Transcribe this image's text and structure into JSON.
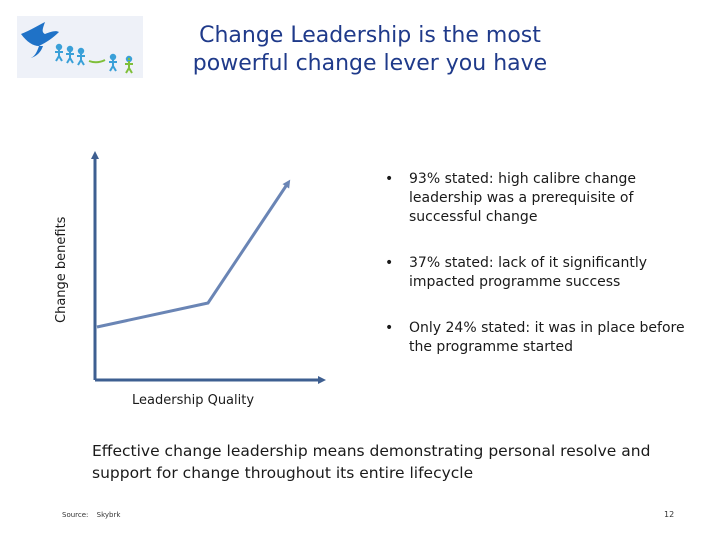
{
  "title": {
    "line1": "Change Leadership is the most",
    "line2": "powerful change lever you have"
  },
  "diagram": {
    "y_axis_label": "Change benefits",
    "x_axis_label": "Leadership Quality",
    "axis_color": "#3e5f91",
    "line_color": "#6a85b5"
  },
  "bullets": [
    {
      "marker": "•",
      "text": "93% stated: high calibre change leadership was a prerequisite of successful change"
    },
    {
      "marker": "•",
      "text": "37% stated: lack of it significantly impacted programme success"
    },
    {
      "marker": "•",
      "text": "Only 24% stated: it was in place before the programme started"
    }
  ],
  "summary": "Effective change leadership means demonstrating personal resolve and support for change throughout its entire lifecycle",
  "footer": {
    "source_label": "Source:",
    "source_value": "Skybrk",
    "page_number": "12"
  },
  "logo": {
    "icon": "dove-and-figures-logo",
    "bird_color": "#1f72c7",
    "figure_color": "#3aa0d8"
  }
}
